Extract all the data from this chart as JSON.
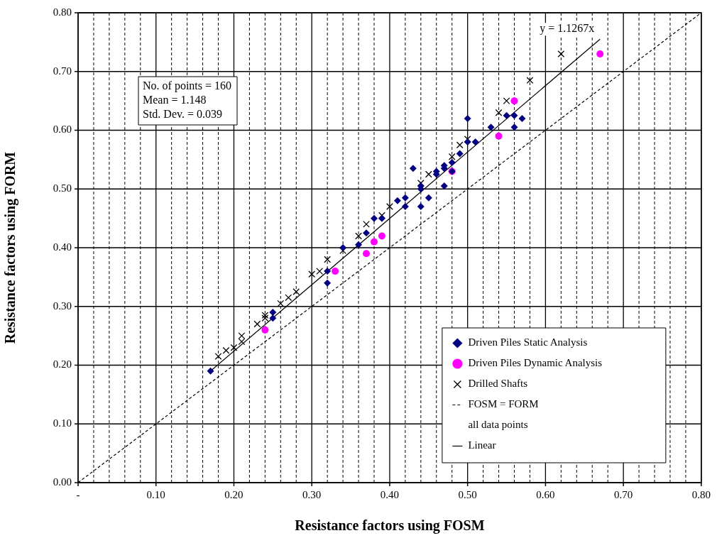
{
  "chart_data": {
    "type": "scatter",
    "xlabel": "Resistance factors using FOSM",
    "ylabel": "Resistance factors using FORM",
    "xlim": [
      0,
      0.8
    ],
    "ylim": [
      0,
      0.8
    ],
    "xticks": [
      {
        "value": 0,
        "label": "-"
      },
      {
        "value": 0.02,
        "label": null
      },
      {
        "value": 0.04,
        "label": null
      },
      {
        "value": 0.06,
        "label": null
      },
      {
        "value": 0.08,
        "label": null
      },
      {
        "value": 0.1,
        "label": "0.10"
      },
      {
        "value": 0.12,
        "label": null
      },
      {
        "value": 0.14,
        "label": null
      },
      {
        "value": 0.16,
        "label": null
      },
      {
        "value": 0.18,
        "label": null
      },
      {
        "value": 0.2,
        "label": "0.20"
      },
      {
        "value": 0.22,
        "label": null
      },
      {
        "value": 0.24,
        "label": null
      },
      {
        "value": 0.26,
        "label": null
      },
      {
        "value": 0.28,
        "label": null
      },
      {
        "value": 0.3,
        "label": "0.30"
      },
      {
        "value": 0.32,
        "label": null
      },
      {
        "value": 0.34,
        "label": null
      },
      {
        "value": 0.36,
        "label": null
      },
      {
        "value": 0.38,
        "label": null
      },
      {
        "value": 0.4,
        "label": "0.40"
      },
      {
        "value": 0.42,
        "label": null
      },
      {
        "value": 0.44,
        "label": null
      },
      {
        "value": 0.46,
        "label": null
      },
      {
        "value": 0.48,
        "label": null
      },
      {
        "value": 0.5,
        "label": "0.50"
      },
      {
        "value": 0.52,
        "label": null
      },
      {
        "value": 0.54,
        "label": null
      },
      {
        "value": 0.56,
        "label": null
      },
      {
        "value": 0.58,
        "label": null
      },
      {
        "value": 0.6,
        "label": "0.60"
      },
      {
        "value": 0.62,
        "label": null
      },
      {
        "value": 0.64,
        "label": null
      },
      {
        "value": 0.66,
        "label": null
      },
      {
        "value": 0.68,
        "label": null
      },
      {
        "value": 0.7,
        "label": "0.70"
      },
      {
        "value": 0.72,
        "label": null
      },
      {
        "value": 0.74,
        "label": null
      },
      {
        "value": 0.76,
        "label": null
      },
      {
        "value": 0.78,
        "label": null
      },
      {
        "value": 0.8,
        "label": "0.80"
      }
    ],
    "yticks": [
      {
        "value": 0,
        "label": "0.00"
      },
      {
        "value": 0.1,
        "label": "0.10"
      },
      {
        "value": 0.2,
        "label": "0.20"
      },
      {
        "value": 0.3,
        "label": "0.30"
      },
      {
        "value": 0.4,
        "label": "0.40"
      },
      {
        "value": 0.5,
        "label": "0.50"
      },
      {
        "value": 0.6,
        "label": "0.60"
      },
      {
        "value": 0.7,
        "label": "0.70"
      },
      {
        "value": 0.8,
        "label": "0.80"
      }
    ],
    "grid": true,
    "legend": "bottom right",
    "series": [
      {
        "name": "Driven Piles Static Analysis",
        "marker": "diamond",
        "color": "#000080",
        "x": [
          0.17,
          0.25,
          0.25,
          0.32,
          0.32,
          0.34,
          0.36,
          0.37,
          0.38,
          0.39,
          0.41,
          0.42,
          0.42,
          0.43,
          0.44,
          0.44,
          0.44,
          0.45,
          0.46,
          0.46,
          0.47,
          0.47,
          0.47,
          0.48,
          0.48,
          0.49,
          0.5,
          0.5,
          0.51,
          0.53,
          0.55,
          0.56,
          0.56,
          0.57
        ],
        "values": [
          0.19,
          0.28,
          0.29,
          0.34,
          0.36,
          0.4,
          0.405,
          0.425,
          0.45,
          0.45,
          0.48,
          0.47,
          0.485,
          0.535,
          0.47,
          0.5,
          0.505,
          0.485,
          0.525,
          0.53,
          0.505,
          0.535,
          0.54,
          0.53,
          0.545,
          0.56,
          0.58,
          0.62,
          0.58,
          0.605,
          0.625,
          0.625,
          0.605,
          0.62
        ]
      },
      {
        "name": "Driven Piles Dynamic Analysis",
        "marker": "circle",
        "color": "#ff00ff",
        "x": [
          0.24,
          0.33,
          0.37,
          0.38,
          0.39,
          0.48,
          0.54,
          0.56,
          0.67
        ],
        "values": [
          0.26,
          0.36,
          0.39,
          0.41,
          0.42,
          0.53,
          0.59,
          0.65,
          0.73
        ]
      },
      {
        "name": "Drilled Shafts",
        "marker": "cross",
        "color": "#000000",
        "x": [
          0.18,
          0.19,
          0.2,
          0.21,
          0.21,
          0.23,
          0.24,
          0.24,
          0.26,
          0.27,
          0.28,
          0.3,
          0.31,
          0.32,
          0.34,
          0.36,
          0.37,
          0.39,
          0.4,
          0.44,
          0.45,
          0.48,
          0.49,
          0.5,
          0.54,
          0.55,
          0.58,
          0.62
        ],
        "values": [
          0.215,
          0.225,
          0.23,
          0.24,
          0.25,
          0.27,
          0.28,
          0.285,
          0.305,
          0.315,
          0.325,
          0.355,
          0.36,
          0.38,
          0.395,
          0.42,
          0.44,
          0.455,
          0.47,
          0.51,
          0.525,
          0.555,
          0.575,
          0.585,
          0.63,
          0.65,
          0.685,
          0.73
        ]
      },
      {
        "name": "FOSM = FORM",
        "type": "line",
        "marker": "none",
        "line_style": "dashed",
        "color": "#000000",
        "x": [
          0,
          0.8
        ],
        "values": [
          0,
          0.8
        ]
      },
      {
        "name": "Linear",
        "type": "line",
        "marker": "none",
        "line_style": "solid",
        "color": "#000000",
        "x": [
          0.17,
          0.67
        ],
        "values": [
          0.19,
          0.755
        ]
      }
    ],
    "annotations": [
      "No. of points = 160\nMean = 1.148\nStd. Dev. = 0.039",
      "all data points",
      "y = 1.1267x"
    ]
  }
}
